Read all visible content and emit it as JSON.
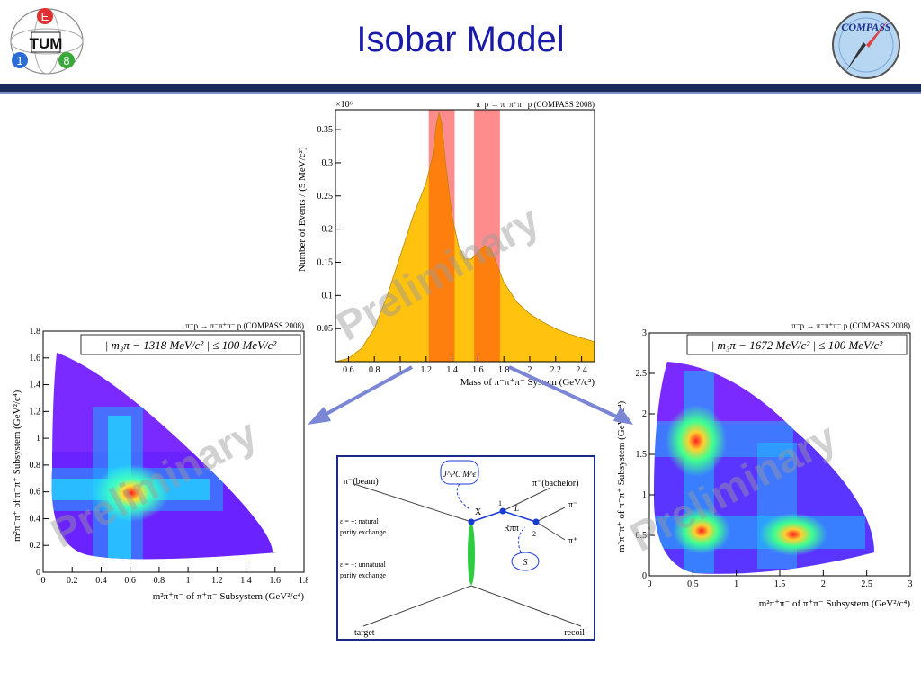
{
  "slide": {
    "title": "Isobar Model"
  },
  "logos": {
    "tum": {
      "letters": [
        "E",
        "1",
        "8"
      ],
      "mark": "TUM"
    },
    "compass": {
      "text": "COMPASS"
    }
  },
  "watermark": "Preliminary",
  "colors": {
    "title": "#1a1aa8",
    "bar": "#1a2a5a",
    "band": "#ff8c8c",
    "fill": "#ffc20e",
    "overlap": "#ff7f0e",
    "arrow": "#7b86d4"
  },
  "mass_plot": {
    "label": "π⁻p → π⁻π⁺π⁻ p (COMPASS 2008)",
    "exponent": "×10⁶",
    "ylabel": "Number of Events / (5 MeV/c²)",
    "xlabel": "Mass of π⁻π⁺π⁻ System (GeV/c²)"
  },
  "dalitz_left": {
    "label": "π⁻p → π⁻π⁺π⁻ p (COMPASS 2008)",
    "cut": "| m₃π − 1318 MeV/c² | ≤ 100 MeV/c²",
    "ylabel": "m²π⁻π⁺ of π⁻π⁺ Subsystem (GeV²/c⁴)",
    "xlabel": "m²π⁺π⁻ of π⁺π⁻ Subsystem (GeV²/c⁴)",
    "xticks": [
      "0",
      "0.2",
      "0.4",
      "0.6",
      "0.8",
      "1",
      "1.2",
      "1.4",
      "1.6",
      "1.8"
    ],
    "yticks": [
      "0",
      "0.2",
      "0.4",
      "0.6",
      "0.8",
      "1",
      "1.2",
      "1.4",
      "1.6",
      "1.8"
    ]
  },
  "dalitz_right": {
    "label": "π⁻p → π⁻π⁺π⁻ p (COMPASS 2008)",
    "cut": "| m₃π − 1672 MeV/c² | ≤ 100 MeV/c²",
    "ylabel": "m²π⁻π⁺ of π⁻π⁺ Subsystem (GeV²/c⁴)",
    "xlabel": "m²π⁺π⁻ of π⁺π⁻ Subsystem (GeV²/c⁴)",
    "xticks": [
      "0",
      "0.5",
      "1",
      "1.5",
      "2",
      "2.5",
      "3"
    ],
    "yticks": [
      "0",
      "0.5",
      "1",
      "1.5",
      "2",
      "2.5",
      "3"
    ]
  },
  "diagram": {
    "beam": "π⁻(beam)",
    "bachelor": "π⁻(bachelor)",
    "jpc": "J^PC M^ε",
    "x": "X",
    "l": "L",
    "rpp": "Rππ",
    "vertex1": "1",
    "vertex2": "2",
    "piminus": "π⁻",
    "piplus": "π⁺",
    "s": "S",
    "natural_1": "ε = +: natural",
    "natural_2": "parity exchange",
    "unnatural_1": "ε = −: unnatural",
    "unnatural_2": "parity exchange",
    "target": "target",
    "recoil": "recoil"
  },
  "chart_data": {
    "type": "area",
    "title": "",
    "xlabel": "Mass of π⁻π⁺π⁻ System (GeV/c²)",
    "ylabel": "Number of Events / (5 MeV/c²)",
    "y_multiplier": "×10⁶",
    "xlim": [
      0.5,
      2.5
    ],
    "ylim": [
      0,
      0.38
    ],
    "xticks": [
      0.6,
      0.8,
      1.0,
      1.2,
      1.4,
      1.6,
      1.8,
      2.0,
      2.2,
      2.4
    ],
    "yticks": [
      0.05,
      0.1,
      0.15,
      0.2,
      0.25,
      0.3,
      0.35
    ],
    "x": [
      0.5,
      0.6,
      0.7,
      0.8,
      0.9,
      1.0,
      1.1,
      1.15,
      1.2,
      1.25,
      1.28,
      1.3,
      1.32,
      1.35,
      1.4,
      1.45,
      1.5,
      1.55,
      1.6,
      1.65,
      1.7,
      1.75,
      1.8,
      1.9,
      2.0,
      2.1,
      2.2,
      2.3,
      2.4,
      2.5
    ],
    "y": [
      0.0,
      0.005,
      0.02,
      0.05,
      0.1,
      0.16,
      0.22,
      0.245,
      0.27,
      0.31,
      0.36,
      0.375,
      0.36,
      0.3,
      0.22,
      0.175,
      0.155,
      0.155,
      0.165,
      0.175,
      0.17,
      0.145,
      0.12,
      0.09,
      0.072,
      0.06,
      0.05,
      0.042,
      0.036,
      0.03
    ],
    "bands": [
      [
        1.22,
        1.42
      ],
      [
        1.57,
        1.77
      ]
    ]
  }
}
